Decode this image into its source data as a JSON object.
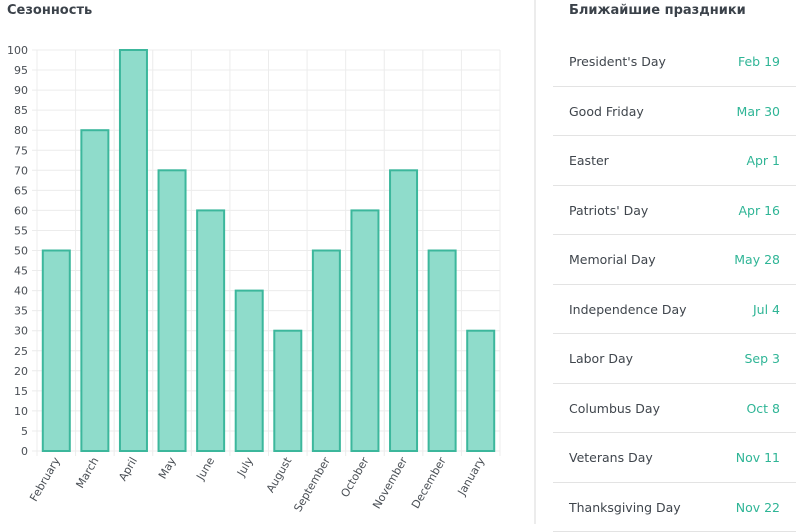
{
  "seasonality": {
    "title": "Сезонность"
  },
  "holidays": {
    "title": "Ближайшие праздники",
    "items": [
      {
        "name": "President's Day",
        "date": "Feb 19"
      },
      {
        "name": "Good Friday",
        "date": "Mar 30"
      },
      {
        "name": "Easter",
        "date": "Apr 1"
      },
      {
        "name": "Patriots' Day",
        "date": "Apr 16"
      },
      {
        "name": "Memorial Day",
        "date": "May 28"
      },
      {
        "name": "Independence Day",
        "date": "Jul 4"
      },
      {
        "name": "Labor Day",
        "date": "Sep 3"
      },
      {
        "name": "Columbus Day",
        "date": "Oct 8"
      },
      {
        "name": "Veterans Day",
        "date": "Nov 11"
      },
      {
        "name": "Thanksgiving Day",
        "date": "Nov 22"
      }
    ]
  },
  "colors": {
    "bar_fill": "#8fdccb",
    "bar_stroke": "#3cb79c",
    "accent": "#2fb596",
    "grid": "#ececec"
  },
  "chart_data": {
    "type": "bar",
    "title": "Сезонность",
    "xlabel": "",
    "ylabel": "",
    "categories": [
      "February",
      "March",
      "April",
      "May",
      "June",
      "July",
      "August",
      "September",
      "October",
      "November",
      "December",
      "January"
    ],
    "values": [
      50,
      80,
      100,
      70,
      60,
      40,
      30,
      50,
      60,
      70,
      50,
      30
    ],
    "ylim": [
      0,
      100
    ],
    "ytick_step": 5,
    "grid": true,
    "legend": "none"
  }
}
